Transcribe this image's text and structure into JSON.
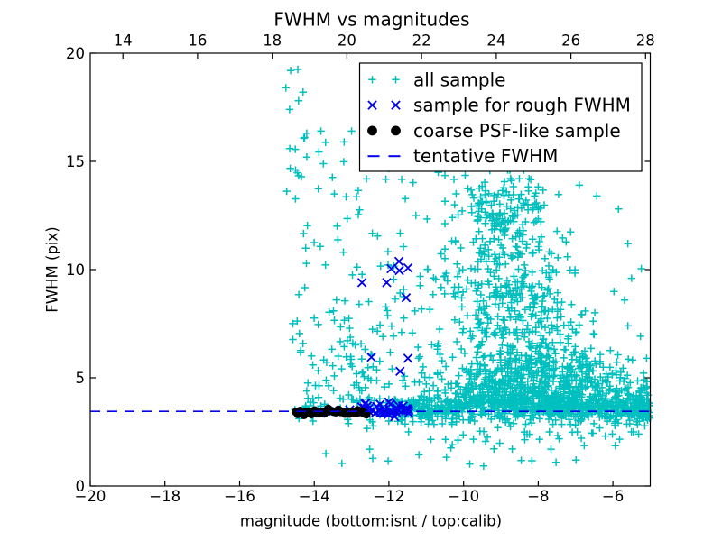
{
  "chart_data": {
    "type": "scatter",
    "title": "FWHM vs magnitudes",
    "xlabel": "magnitude (bottom:isnt / top:calib)",
    "ylabel": "FWHM (pix)",
    "xlim_bottom": [
      -20,
      -5
    ],
    "xlim_top": [
      13.125,
      28.125
    ],
    "ylim": [
      0,
      20
    ],
    "xticks_bottom": [
      -20,
      -18,
      -16,
      -14,
      -12,
      -10,
      -8,
      -6
    ],
    "xtick_labels_bottom": [
      "−20",
      "−18",
      "−16",
      "−14",
      "−12",
      "−10",
      "−8",
      "−6"
    ],
    "xticks_top": [
      14,
      16,
      18,
      20,
      22,
      24,
      26,
      28
    ],
    "xtick_labels_top": [
      "14",
      "16",
      "18",
      "20",
      "22",
      "24",
      "26",
      "28"
    ],
    "yticks": [
      0,
      5,
      10,
      15,
      20
    ],
    "ytick_labels": [
      "0",
      "5",
      "10",
      "15",
      "20"
    ],
    "grid": false,
    "tentative_fwhm": 3.45,
    "colors": {
      "all_sample": "#00bfbf",
      "rough_fwhm": "#0000ee",
      "psf_sample": "#000000",
      "tentative_line": "#0000ee",
      "axis": "#000000",
      "background": "#ffffff"
    },
    "legend": {
      "position": "upper right",
      "entries": [
        {
          "label": "all sample",
          "marker": "plus",
          "color": "#00bfbf"
        },
        {
          "label": "sample for rough FWHM",
          "marker": "x",
          "color": "#0000ee"
        },
        {
          "label": "coarse PSF-like sample",
          "marker": "dot",
          "color": "#000000"
        },
        {
          "label": "tentative FWHM",
          "marker": "dashed-line",
          "color": "#0000ee"
        }
      ]
    },
    "series": [
      {
        "name": "all sample",
        "marker": "plus",
        "color": "#00bfbf",
        "seed": 1234,
        "clusters": [
          {
            "n": 560,
            "x": {
              "d": "u",
              "a": -11.95,
              "b": -5.03
            },
            "y": {
              "d": "g",
              "m": 3.55,
              "s": 0.3,
              "lo": 2.85,
              "hi": 4.6
            }
          },
          {
            "n": 160,
            "x": {
              "d": "u",
              "a": -11.6,
              "b": -5.1
            },
            "y": {
              "d": "g",
              "m": 4.2,
              "s": 0.8,
              "lo": 2.5,
              "hi": 5.9
            }
          },
          {
            "n": 28,
            "x": {
              "d": "u",
              "a": -14.55,
              "b": -11.95
            },
            "y": {
              "d": "g",
              "m": 3.6,
              "s": 0.35,
              "lo": 3.0,
              "hi": 4.5
            }
          },
          {
            "n": 55,
            "x": {
              "d": "g",
              "m": -5.32,
              "s": 0.26,
              "lo": -5.8,
              "hi": -5.02
            },
            "y": {
              "d": "g",
              "m": 3.6,
              "s": 0.5,
              "lo": 2.4,
              "hi": 4.8
            }
          },
          {
            "n": 550,
            "x": {
              "d": "g",
              "m": -8.45,
              "s": 0.98,
              "lo": -10.7,
              "hi": -5.5
            },
            "y": {
              "d": "hg",
              "m": 3.6,
              "s": 1.75,
              "lo": 3.6,
              "hi": 9.0
            }
          },
          {
            "n": 185,
            "x": {
              "d": "g",
              "m": -8.7,
              "s": 0.95,
              "lo": -10.6,
              "hi": -6.4
            },
            "y": {
              "d": "g",
              "m": 8.8,
              "s": 1.15,
              "lo": 7.1,
              "hi": 11.0
            }
          },
          {
            "n": 150,
            "x": {
              "d": "g",
              "m": -8.9,
              "s": 0.85,
              "lo": -10.5,
              "hi": -6.7
            },
            "y": {
              "d": "g",
              "m": 11.6,
              "s": 1.6,
              "lo": 9.2,
              "hi": 14.6
            }
          },
          {
            "n": 70,
            "x": {
              "d": "g",
              "m": -9.0,
              "s": 0.55,
              "lo": -10.2,
              "hi": -8.0
            },
            "y": {
              "d": "g",
              "m": 12.9,
              "s": 0.65,
              "lo": 11.8,
              "hi": 14.2
            }
          },
          {
            "n": 120,
            "x": {
              "d": "g",
              "m": -6.85,
              "s": 0.7,
              "lo": -7.9,
              "hi": -5.1
            },
            "y": {
              "d": "g",
              "m": 4.55,
              "s": 0.7,
              "lo": 3.6,
              "hi": 6.3
            }
          },
          {
            "n": 42,
            "x": {
              "d": "g",
              "m": -6.9,
              "s": 0.75,
              "lo": -7.9,
              "hi": -5.15
            },
            "y": {
              "d": "g",
              "m": 6.5,
              "s": 1.3,
              "lo": 4.8,
              "hi": 9.8
            }
          },
          {
            "n": 34,
            "x": {
              "d": "u",
              "a": -10.5,
              "b": -5.6
            },
            "y": {
              "d": "u",
              "a": 1.7,
              "b": 2.85
            }
          },
          {
            "n": 6,
            "x": {
              "d": "u",
              "a": -10.0,
              "b": -6.5
            },
            "y": {
              "d": "u",
              "a": 0.9,
              "b": 1.6
            }
          },
          {
            "n": 125,
            "x": {
              "d": "u",
              "a": -14.75,
              "b": -11.2
            },
            "y": {
              "d": "u",
              "a": 3.2,
              "b": 16.2
            }
          },
          {
            "n": 55,
            "x": {
              "d": "g",
              "m": -12.9,
              "s": 0.55,
              "lo": -14.2,
              "hi": -11.6
            },
            "y": {
              "d": "g",
              "m": 5.3,
              "s": 1.3,
              "lo": 3.6,
              "hi": 8.6
            }
          },
          {
            "n": 6,
            "x": {
              "d": "u",
              "a": -14.2,
              "b": -11.8
            },
            "y": {
              "d": "u",
              "a": 2.65,
              "b": 3.1
            }
          },
          {
            "n": 5,
            "x": {
              "d": "u",
              "a": -13.7,
              "b": -11.4
            },
            "y": {
              "d": "u",
              "a": 0.7,
              "b": 2.4
            }
          },
          {
            "n": 26,
            "x": {
              "d": "u",
              "a": -11.2,
              "b": -10.45
            },
            "y": {
              "d": "u",
              "a": 1.3,
              "b": 14.5
            }
          }
        ],
        "points": [
          [
            -14.63,
            19.2
          ],
          [
            -14.44,
            19.25
          ],
          [
            -14.76,
            18.4
          ],
          [
            -14.3,
            18.2
          ],
          [
            -14.42,
            17.8
          ],
          [
            -14.66,
            17.4
          ],
          [
            -14.2,
            16.3
          ],
          [
            -13.82,
            16.4
          ],
          [
            -13.0,
            16.4
          ],
          [
            -13.2,
            15.9
          ],
          [
            -14.2,
            15.2
          ],
          [
            -14.5,
            14.6
          ],
          [
            -12.6,
            15.3
          ],
          [
            -11.9,
            14.9
          ],
          [
            -5.24,
            10.04
          ],
          [
            -5.85,
            12.8
          ],
          [
            -6.43,
            13.4
          ],
          [
            -5.6,
            11.2
          ],
          [
            -5.5,
            9.6
          ],
          [
            -5.1,
            5.9
          ],
          [
            -5.6,
            7.4
          ],
          [
            -8.5,
            15.6
          ],
          [
            -7.2,
            16.4
          ],
          [
            -6.9,
            13.9
          ],
          [
            -9.3,
            14.9
          ]
        ]
      },
      {
        "name": "sample for rough FWHM",
        "marker": "x",
        "color": "#0000ee",
        "seed": 77,
        "clusters": [
          {
            "n": 42,
            "x": {
              "d": "sp",
              "a": -12.76,
              "b": -11.44,
              "j": 0.05
            },
            "y": {
              "d": "g",
              "m": 3.52,
              "s": 0.15,
              "lo": 3.2,
              "hi": 3.95
            }
          }
        ],
        "points": [
          [
            -11.73,
            10.38
          ],
          [
            -11.94,
            10.04
          ],
          [
            -11.72,
            9.96
          ],
          [
            -11.49,
            10.08
          ],
          [
            -12.72,
            9.4
          ],
          [
            -12.06,
            9.4
          ],
          [
            -11.54,
            8.7
          ],
          [
            -12.47,
            5.95
          ],
          [
            -11.49,
            5.9
          ],
          [
            -11.7,
            5.3
          ],
          [
            -12.62,
            3.82
          ],
          [
            -12.0,
            3.88
          ],
          [
            -13.5,
            3.45
          ],
          [
            -13.05,
            3.52
          ]
        ]
      },
      {
        "name": "coarse PSF-like sample",
        "marker": "dot",
        "color": "#000000",
        "seed": 5,
        "clusters": [
          {
            "n": 36,
            "x": {
              "d": "sp",
              "a": -14.5,
              "b": -12.6,
              "j": 0.025
            },
            "y": {
              "d": "g",
              "m": 3.42,
              "s": 0.05
            }
          }
        ],
        "points": []
      },
      {
        "name": "tentative FWHM",
        "type": "hline",
        "y": 3.45,
        "color": "#0000ee",
        "dash": [
          11,
          8
        ]
      }
    ]
  }
}
